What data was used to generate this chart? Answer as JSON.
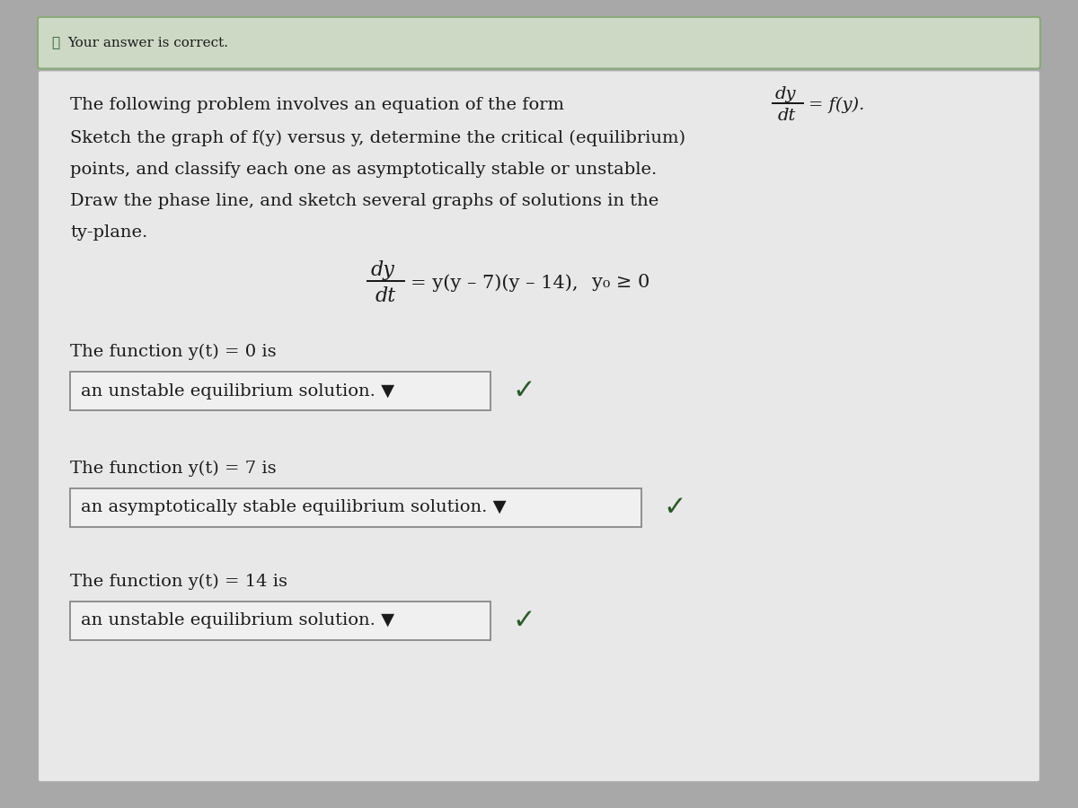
{
  "bg_outer": "#a8a8a8",
  "bg_green_bar": "#cdd9c5",
  "bg_green_bar_edge": "#8aaa7a",
  "bg_white_box": "#e8e8e8",
  "bg_white_box_edge": "#aaaaaa",
  "bg_answer_box": "#f0f0f0",
  "bg_answer_box_edge": "#888888",
  "text_dark": "#1a1a1a",
  "text_green_check": "#2a5a2a",
  "text_green_bar_check": "#3a5a3a",
  "green_bar_text": "Your answer is correct.",
  "intro_text": "The following problem involves an equation of the form",
  "frac_dy": "dy",
  "frac_dt": "dt",
  "equals_fy": "= f(y).",
  "line1": "Sketch the graph of f(y) versus y, determine the critical (equilibrium)",
  "line2": "points, and classify each one as asymptotically stable or unstable.",
  "line3": "Draw the phase line, and sketch several graphs of solutions in the",
  "line4": "ty-plane.",
  "eq_rhs": "= y(y – 7)(y – 14),",
  "eq_cond": "y₀ ≥ 0",
  "f1_label": "The function y(t) = 0 is",
  "f1_box": "an unstable equilibrium solution. ▼",
  "f2_label": "The function y(t) = 7 is",
  "f2_box": "an asymptotically stable equilibrium solution. ▼",
  "f3_label": "The function y(t) = 14 is",
  "f3_box": "an unstable equilibrium solution. ▼",
  "figsize": [
    12.0,
    9.0
  ],
  "dpi": 100
}
